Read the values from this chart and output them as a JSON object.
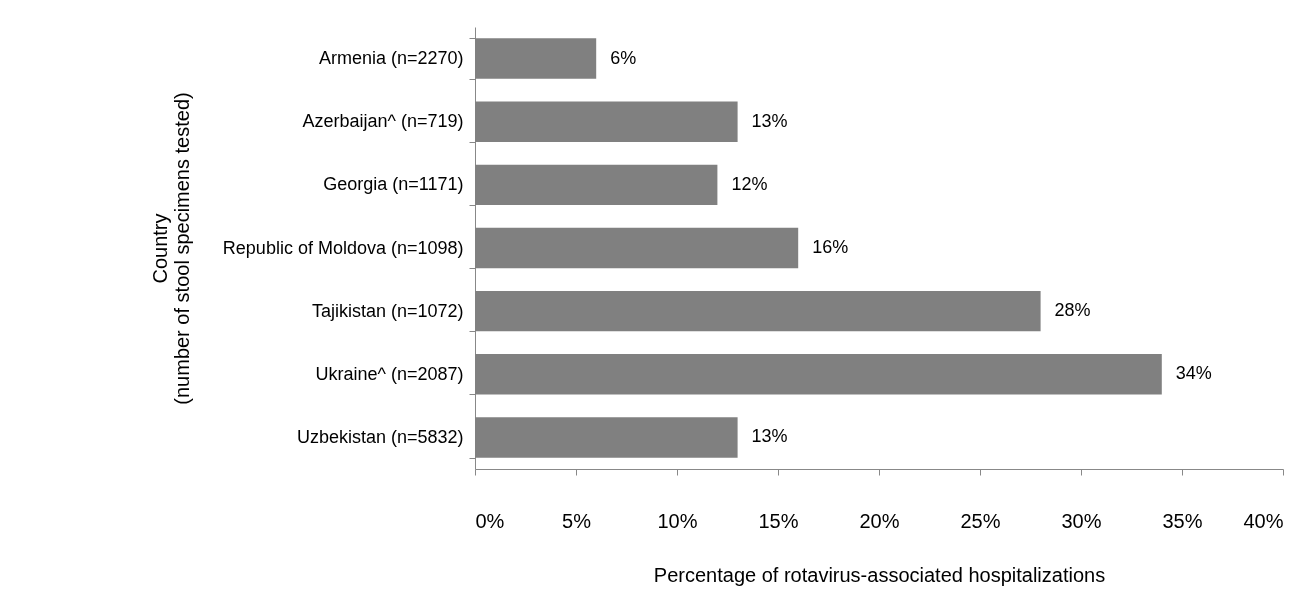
{
  "chart_data": {
    "type": "bar",
    "orientation": "horizontal",
    "xlabel": "Percentage of rotavirus-associated hospitalizations",
    "ylabel": "Country\n(number of stool specimens tested)",
    "categories": [
      "Armenia (n=2270)",
      "Azerbaijan^ (n=719)",
      "Georgia (n=1171)",
      "Republic of Moldova (n=1098)",
      "Tajikistan (n=1072)",
      "Ukraine^ (n=2087)",
      "Uzbekistan (n=5832)"
    ],
    "values": [
      6,
      13,
      12,
      16,
      28,
      34,
      13
    ],
    "value_labels": [
      "6%",
      "13%",
      "12%",
      "16%",
      "28%",
      "34%",
      "13%"
    ],
    "color": "#808080",
    "xlim": [
      0,
      40
    ],
    "xticks": [
      {
        "value": 0,
        "label": "0%"
      },
      {
        "value": 5,
        "label": "5%"
      },
      {
        "value": 10,
        "label": "10%"
      },
      {
        "value": 15,
        "label": "15%"
      },
      {
        "value": 20,
        "label": "20%"
      },
      {
        "value": 25,
        "label": "25%"
      },
      {
        "value": 30,
        "label": "30%"
      },
      {
        "value": 35,
        "label": "35%"
      },
      {
        "value": 40,
        "label": "40%"
      }
    ],
    "grid": false
  }
}
